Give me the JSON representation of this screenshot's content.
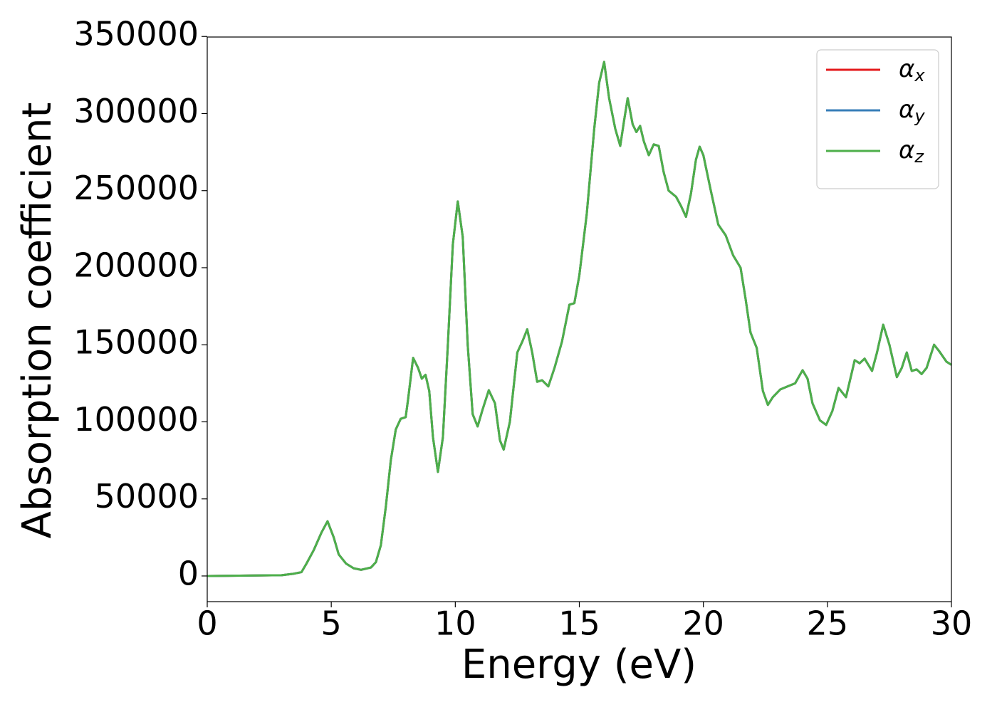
{
  "chart_data": {
    "type": "line",
    "xlabel": "Energy (eV)",
    "ylabel": "Absorption coefficient",
    "x": [
      0,
      3,
      3.5,
      3.8,
      4.0,
      4.3,
      4.6,
      4.85,
      5.1,
      5.3,
      5.6,
      5.9,
      6.2,
      6.6,
      6.8,
      7.0,
      7.2,
      7.4,
      7.6,
      7.8,
      8.0,
      8.1,
      8.3,
      8.5,
      8.65,
      8.8,
      8.95,
      9.1,
      9.3,
      9.5,
      9.7,
      9.9,
      10.1,
      10.3,
      10.5,
      10.7,
      10.9,
      11.1,
      11.35,
      11.6,
      11.8,
      11.95,
      12.2,
      12.5,
      12.7,
      12.9,
      13.1,
      13.3,
      13.5,
      13.75,
      14.0,
      14.3,
      14.6,
      14.8,
      15.0,
      15.3,
      15.6,
      15.8,
      16.0,
      16.2,
      16.45,
      16.65,
      16.8,
      16.95,
      17.15,
      17.3,
      17.45,
      17.6,
      17.8,
      18.0,
      18.2,
      18.4,
      18.6,
      18.9,
      19.1,
      19.3,
      19.5,
      19.7,
      19.85,
      20.0,
      20.3,
      20.6,
      20.9,
      21.2,
      21.5,
      21.7,
      21.9,
      22.15,
      22.4,
      22.6,
      22.8,
      23.1,
      23.4,
      23.7,
      24.0,
      24.2,
      24.4,
      24.7,
      24.95,
      25.2,
      25.45,
      25.6,
      25.75,
      26.0,
      26.1,
      26.3,
      26.5,
      26.8,
      27.0,
      27.25,
      27.5,
      27.8,
      28.0,
      28.2,
      28.4,
      28.6,
      28.8,
      29.0,
      29.3,
      29.5,
      29.8,
      30
    ],
    "series": [
      {
        "name": "αx",
        "color": "#e41a1c",
        "values": [
          0,
          500,
          1500,
          2500,
          8000,
          17000,
          28000,
          35500,
          25000,
          14000,
          8000,
          5000,
          4000,
          5500,
          9000,
          20000,
          45000,
          75000,
          95000,
          102000,
          103000,
          115000,
          141500,
          135000,
          128000,
          130500,
          120000,
          90000,
          67500,
          90000,
          150000,
          215000,
          243000,
          220000,
          150000,
          105000,
          97000,
          108000,
          120500,
          112000,
          88000,
          82000,
          100000,
          145000,
          152000,
          160000,
          145000,
          126000,
          127000,
          123000,
          135000,
          152000,
          176000,
          177000,
          195000,
          235000,
          290000,
          320000,
          333500,
          310000,
          290000,
          279000,
          295000,
          310000,
          293000,
          288000,
          292000,
          282000,
          273000,
          280000,
          279000,
          262000,
          250000,
          246000,
          240000,
          233000,
          248000,
          270000,
          278500,
          273000,
          250000,
          228000,
          221000,
          208000,
          200000,
          180000,
          158000,
          148000,
          120000,
          111000,
          116000,
          121000,
          123000,
          125000,
          133500,
          128000,
          112000,
          101000,
          98000,
          107000,
          122000,
          119000,
          116000,
          133000,
          140000,
          138000,
          141000,
          133000,
          145000,
          163000,
          150000,
          129000,
          135000,
          145000,
          133000,
          134000,
          131000,
          135000,
          150000,
          146000,
          139000,
          137000
        ]
      },
      {
        "name": "αy",
        "color": "#377eb8",
        "values": [
          0,
          500,
          1500,
          2500,
          8000,
          17000,
          28000,
          35500,
          25000,
          14000,
          8000,
          5000,
          4000,
          5500,
          9000,
          20000,
          45000,
          75000,
          95000,
          102000,
          103000,
          115000,
          141500,
          135000,
          128000,
          130500,
          120000,
          90000,
          67500,
          90000,
          150000,
          215000,
          243000,
          220000,
          150000,
          105000,
          97000,
          108000,
          120500,
          112000,
          88000,
          82000,
          100000,
          145000,
          152000,
          160000,
          145000,
          126000,
          127000,
          123000,
          135000,
          152000,
          176000,
          177000,
          195000,
          235000,
          290000,
          320000,
          333500,
          310000,
          290000,
          279000,
          295000,
          310000,
          293000,
          288000,
          292000,
          282000,
          273000,
          280000,
          279000,
          262000,
          250000,
          246000,
          240000,
          233000,
          248000,
          270000,
          278500,
          273000,
          250000,
          228000,
          221000,
          208000,
          200000,
          180000,
          158000,
          148000,
          120000,
          111000,
          116000,
          121000,
          123000,
          125000,
          133500,
          128000,
          112000,
          101000,
          98000,
          107000,
          122000,
          119000,
          116000,
          133000,
          140000,
          138000,
          141000,
          133000,
          145000,
          163000,
          150000,
          129000,
          135000,
          145000,
          133000,
          134000,
          131000,
          135000,
          150000,
          146000,
          139000,
          137000
        ]
      },
      {
        "name": "αz",
        "color": "#4daf4a",
        "values": [
          0,
          500,
          1500,
          2500,
          8000,
          17000,
          28000,
          35500,
          25000,
          14000,
          8000,
          5000,
          4000,
          5500,
          9000,
          20000,
          45000,
          75000,
          95000,
          102000,
          103000,
          115000,
          141500,
          135000,
          128000,
          130500,
          120000,
          90000,
          67500,
          90000,
          150000,
          215000,
          243000,
          220000,
          150000,
          105000,
          97000,
          108000,
          120500,
          112000,
          88000,
          82000,
          100000,
          145000,
          152000,
          160000,
          145000,
          126000,
          127000,
          123000,
          135000,
          152000,
          176000,
          177000,
          195000,
          235000,
          290000,
          320000,
          333500,
          310000,
          290000,
          279000,
          295000,
          310000,
          293000,
          288000,
          292000,
          282000,
          273000,
          280000,
          279000,
          262000,
          250000,
          246000,
          240000,
          233000,
          248000,
          270000,
          278500,
          273000,
          250000,
          228000,
          221000,
          208000,
          200000,
          180000,
          158000,
          148000,
          120000,
          111000,
          116000,
          121000,
          123000,
          125000,
          133500,
          128000,
          112000,
          101000,
          98000,
          107000,
          122000,
          119000,
          116000,
          133000,
          140000,
          138000,
          141000,
          133000,
          145000,
          163000,
          150000,
          129000,
          135000,
          145000,
          133000,
          134000,
          131000,
          135000,
          150000,
          146000,
          139000,
          137000
        ]
      }
    ],
    "xlim": [
      0,
      30
    ],
    "xticks": [
      0,
      5,
      10,
      15,
      20,
      25,
      30
    ],
    "ylim": [
      -16650,
      349650
    ],
    "yticks": [
      0,
      50000,
      100000,
      150000,
      200000,
      250000,
      300000,
      350000
    ],
    "legend": "upper right",
    "grid": false
  }
}
